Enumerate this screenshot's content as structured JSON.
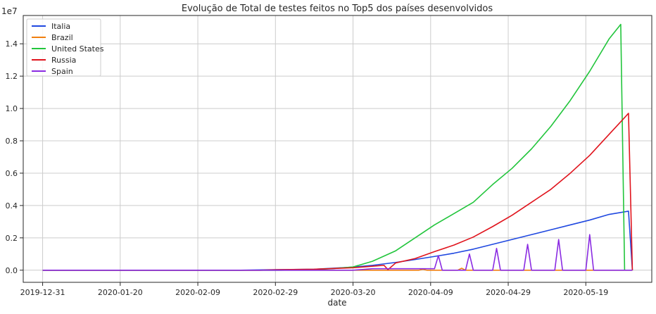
{
  "chart_data": {
    "type": "line",
    "title": "Evolução de Total de testes feitos no Top5 dos países desenvolvidos",
    "xlabel": "date",
    "ylabel": "",
    "y_offset_label": "1e7",
    "xlim": [
      "2019-12-26",
      "2020-06-05"
    ],
    "ylim": [
      -0.075,
      1.575
    ],
    "x_tick_labels": [
      "2019-12-31",
      "2020-01-20",
      "2020-02-09",
      "2020-02-29",
      "2020-03-20",
      "2020-04-09",
      "2020-04-29",
      "2020-05-19"
    ],
    "y_tick_labels": [
      "0.0",
      "0.2",
      "0.4",
      "0.6",
      "0.8",
      "1.0",
      "1.2",
      "1.4"
    ],
    "grid": true,
    "legend_position": "top-left",
    "series": [
      {
        "name": "Italia",
        "color": "#1f48e0",
        "points": [
          [
            "2019-12-31",
            0
          ],
          [
            "2020-02-20",
            0
          ],
          [
            "2020-02-29",
            0.003
          ],
          [
            "2020-03-10",
            0.006
          ],
          [
            "2020-03-20",
            0.019
          ],
          [
            "2020-03-25",
            0.03
          ],
          [
            "2020-03-31",
            0.048
          ],
          [
            "2020-04-05",
            0.066
          ],
          [
            "2020-04-10",
            0.085
          ],
          [
            "2020-04-15",
            0.105
          ],
          [
            "2020-04-20",
            0.13
          ],
          [
            "2020-04-25",
            0.16
          ],
          [
            "2020-04-30",
            0.19
          ],
          [
            "2020-05-05",
            0.22
          ],
          [
            "2020-05-10",
            0.25
          ],
          [
            "2020-05-15",
            0.28
          ],
          [
            "2020-05-20",
            0.31
          ],
          [
            "2020-05-25",
            0.345
          ],
          [
            "2020-05-30",
            0.365
          ],
          [
            "2020-05-31",
            0
          ]
        ]
      },
      {
        "name": "Brazil",
        "color": "#f07f10",
        "points": [
          [
            "2019-12-31",
            0
          ],
          [
            "2020-04-06",
            0
          ],
          [
            "2020-04-07",
            0.005
          ],
          [
            "2020-04-08",
            0
          ],
          [
            "2020-04-16",
            0
          ],
          [
            "2020-04-17",
            0.012
          ],
          [
            "2020-04-18",
            0
          ],
          [
            "2020-05-31",
            0
          ]
        ]
      },
      {
        "name": "United States",
        "color": "#22c53c",
        "points": [
          [
            "2019-12-31",
            0
          ],
          [
            "2020-03-01",
            0
          ],
          [
            "2020-03-10",
            0.003
          ],
          [
            "2020-03-15",
            0.01
          ],
          [
            "2020-03-20",
            0.02
          ],
          [
            "2020-03-25",
            0.055
          ],
          [
            "2020-03-31",
            0.12
          ],
          [
            "2020-04-05",
            0.2
          ],
          [
            "2020-04-10",
            0.28
          ],
          [
            "2020-04-15",
            0.35
          ],
          [
            "2020-04-20",
            0.42
          ],
          [
            "2020-04-25",
            0.53
          ],
          [
            "2020-04-30",
            0.63
          ],
          [
            "2020-05-05",
            0.75
          ],
          [
            "2020-05-10",
            0.89
          ],
          [
            "2020-05-15",
            1.05
          ],
          [
            "2020-05-20",
            1.23
          ],
          [
            "2020-05-25",
            1.43
          ],
          [
            "2020-05-28",
            1.52
          ],
          [
            "2020-05-29",
            0
          ]
        ]
      },
      {
        "name": "Russia",
        "color": "#e0131c",
        "points": [
          [
            "2019-12-31",
            0
          ],
          [
            "2020-02-25",
            0
          ],
          [
            "2020-03-01",
            0.003
          ],
          [
            "2020-03-10",
            0.006
          ],
          [
            "2020-03-20",
            0.015
          ],
          [
            "2020-03-28",
            0.03
          ],
          [
            "2020-03-29",
            0.003
          ],
          [
            "2020-03-31",
            0.045
          ],
          [
            "2020-04-05",
            0.072
          ],
          [
            "2020-04-10",
            0.115
          ],
          [
            "2020-04-15",
            0.155
          ],
          [
            "2020-04-20",
            0.205
          ],
          [
            "2020-04-25",
            0.27
          ],
          [
            "2020-04-30",
            0.34
          ],
          [
            "2020-05-05",
            0.42
          ],
          [
            "2020-05-10",
            0.5
          ],
          [
            "2020-05-15",
            0.6
          ],
          [
            "2020-05-20",
            0.71
          ],
          [
            "2020-05-25",
            0.84
          ],
          [
            "2020-05-30",
            0.97
          ],
          [
            "2020-05-31",
            0
          ]
        ]
      },
      {
        "name": "Spain",
        "color": "#8a2be2",
        "points": [
          [
            "2019-12-31",
            0
          ],
          [
            "2020-03-20",
            0
          ],
          [
            "2020-03-25",
            0.009
          ],
          [
            "2020-04-10",
            0.009
          ],
          [
            "2020-04-11",
            0.09
          ],
          [
            "2020-04-12",
            0
          ],
          [
            "2020-04-18",
            0
          ],
          [
            "2020-04-19",
            0.1
          ],
          [
            "2020-04-20",
            0
          ],
          [
            "2020-04-25",
            0
          ],
          [
            "2020-04-26",
            0.135
          ],
          [
            "2020-04-27",
            0
          ],
          [
            "2020-05-03",
            0
          ],
          [
            "2020-05-04",
            0.16
          ],
          [
            "2020-05-05",
            0
          ],
          [
            "2020-05-11",
            0
          ],
          [
            "2020-05-12",
            0.19
          ],
          [
            "2020-05-13",
            0
          ],
          [
            "2020-05-19",
            0
          ],
          [
            "2020-05-20",
            0.22
          ],
          [
            "2020-05-21",
            0
          ],
          [
            "2020-05-31",
            0
          ]
        ]
      }
    ]
  }
}
